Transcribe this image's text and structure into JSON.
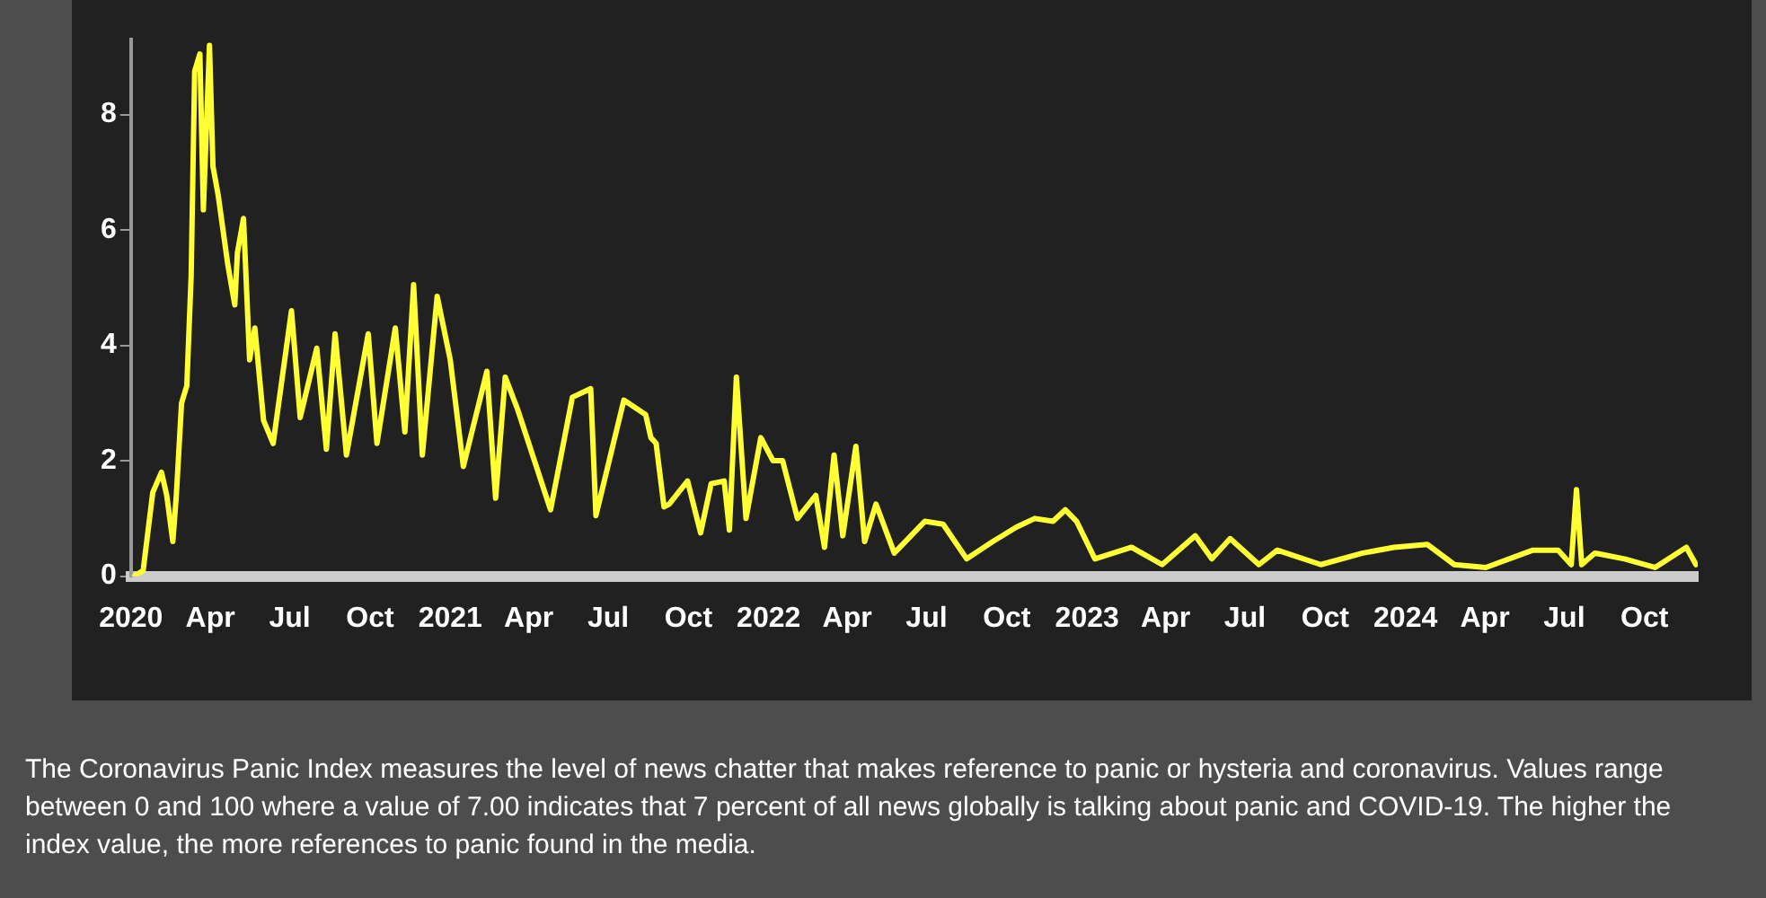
{
  "chart_data": {
    "type": "line",
    "legend": false,
    "grid": false,
    "marker": "none",
    "line_style": "solid",
    "x": [
      "2020-01-05",
      "2020-01-15",
      "2020-01-26",
      "2020-02-05",
      "2020-02-11",
      "2020-02-18",
      "2020-02-22",
      "2020-02-28",
      "2020-03-05",
      "2020-03-10",
      "2020-03-14",
      "2020-03-20",
      "2020-03-24",
      "2020-03-31",
      "2020-04-04",
      "2020-04-10",
      "2020-04-21",
      "2020-04-29",
      "2020-05-02",
      "2020-05-09",
      "2020-05-16",
      "2020-05-22",
      "2020-06-01",
      "2020-06-12",
      "2020-07-03",
      "2020-07-13",
      "2020-08-01",
      "2020-08-12",
      "2020-08-22",
      "2020-09-04",
      "2020-09-29",
      "2020-10-09",
      "2020-10-30",
      "2020-11-10",
      "2020-11-20",
      "2020-11-30",
      "2020-12-17",
      "2021-01-01",
      "2021-01-16",
      "2021-02-12",
      "2021-02-22",
      "2021-03-05",
      "2021-03-19",
      "2021-04-26",
      "2021-05-21",
      "2021-06-11",
      "2021-06-17",
      "2021-07-19",
      "2021-08-13",
      "2021-08-19",
      "2021-08-25",
      "2021-09-03",
      "2021-09-09",
      "2021-09-30",
      "2021-10-15",
      "2021-10-27",
      "2021-11-11",
      "2021-11-17",
      "2021-11-25",
      "2021-12-06",
      "2021-12-23",
      "2022-01-06",
      "2022-01-17",
      "2022-02-03",
      "2022-02-24",
      "2022-03-06",
      "2022-03-17",
      "2022-03-27",
      "2022-04-11",
      "2022-04-21",
      "2022-05-04",
      "2022-05-25",
      "2022-06-29",
      "2022-07-20",
      "2022-08-16",
      "2022-09-15",
      "2022-10-12",
      "2022-11-02",
      "2022-11-23",
      "2022-12-07",
      "2022-12-20",
      "2023-01-10",
      "2023-02-21",
      "2023-03-28",
      "2023-05-05",
      "2023-05-24",
      "2023-06-14",
      "2023-07-17",
      "2023-08-07",
      "2023-09-26",
      "2023-11-13",
      "2023-12-19",
      "2024-01-26",
      "2024-02-26",
      "2024-04-02",
      "2024-05-26",
      "2024-06-24",
      "2024-07-09",
      "2024-07-15",
      "2024-07-21",
      "2024-08-05",
      "2024-09-08",
      "2024-10-13",
      "2024-11-18",
      "2024-11-29"
    ],
    "series": [
      {
        "color": "#ffff33",
        "values": [
          0,
          0.1,
          1.45,
          1.8,
          1.4,
          0.6,
          1.4,
          3.0,
          3.3,
          5.2,
          8.75,
          9.05,
          6.35,
          9.2,
          7.1,
          6.6,
          5.4,
          4.7,
          5.6,
          6.2,
          3.75,
          4.3,
          2.7,
          2.3,
          4.6,
          2.75,
          3.95,
          2.2,
          4.2,
          2.1,
          4.2,
          2.3,
          4.3,
          2.5,
          5.05,
          2.1,
          4.85,
          3.75,
          1.9,
          3.55,
          1.35,
          3.45,
          2.9,
          1.15,
          3.1,
          3.25,
          1.05,
          3.05,
          2.8,
          2.4,
          2.3,
          1.2,
          1.25,
          1.65,
          0.75,
          1.6,
          1.65,
          0.8,
          3.45,
          1.0,
          2.4,
          2.0,
          2.0,
          1.0,
          1.4,
          0.5,
          2.1,
          0.7,
          2.25,
          0.6,
          1.25,
          0.4,
          0.95,
          0.9,
          0.3,
          0.6,
          0.85,
          1.0,
          0.95,
          1.15,
          0.95,
          0.3,
          0.5,
          0.2,
          0.7,
          0.3,
          0.65,
          0.2,
          0.45,
          0.2,
          0.4,
          0.5,
          0.55,
          0.2,
          0.15,
          0.45,
          0.45,
          0.2,
          1.5,
          0.2,
          0.4,
          0.3,
          0.15,
          0.5,
          0.2
        ]
      }
    ],
    "xlim": [
      "2020-01-01",
      "2024-12-01"
    ],
    "xticks": [
      {
        "value": "2020-01-01",
        "label": "2020"
      },
      {
        "value": "2020-04-01",
        "label": "Apr"
      },
      {
        "value": "2020-07-01",
        "label": "Jul"
      },
      {
        "value": "2020-10-01",
        "label": "Oct"
      },
      {
        "value": "2021-01-01",
        "label": "2021"
      },
      {
        "value": "2021-04-01",
        "label": "Apr"
      },
      {
        "value": "2021-07-01",
        "label": "Jul"
      },
      {
        "value": "2021-10-01",
        "label": "Oct"
      },
      {
        "value": "2022-01-01",
        "label": "2022"
      },
      {
        "value": "2022-04-01",
        "label": "Apr"
      },
      {
        "value": "2022-07-01",
        "label": "Jul"
      },
      {
        "value": "2022-10-01",
        "label": "Oct"
      },
      {
        "value": "2023-01-01",
        "label": "2023"
      },
      {
        "value": "2023-04-01",
        "label": "Apr"
      },
      {
        "value": "2023-07-01",
        "label": "Jul"
      },
      {
        "value": "2023-10-01",
        "label": "Oct"
      },
      {
        "value": "2024-01-01",
        "label": "2024"
      },
      {
        "value": "2024-04-01",
        "label": "Apr"
      },
      {
        "value": "2024-07-01",
        "label": "Jul"
      },
      {
        "value": "2024-10-01",
        "label": "Oct"
      }
    ],
    "ylim": [
      0,
      9.3
    ],
    "yticks": [
      0,
      2,
      4,
      6,
      8
    ],
    "annotations": [
      "The Coronavirus Panic Index measures the level of news chatter that makes reference to panic or hysteria and coronavirus. Values range between 0 and 100 where a value of 7.00 indicates that 7 percent of all news globally is talking about panic and COVID-19. The higher the index value, the more references to panic found in the media."
    ]
  }
}
